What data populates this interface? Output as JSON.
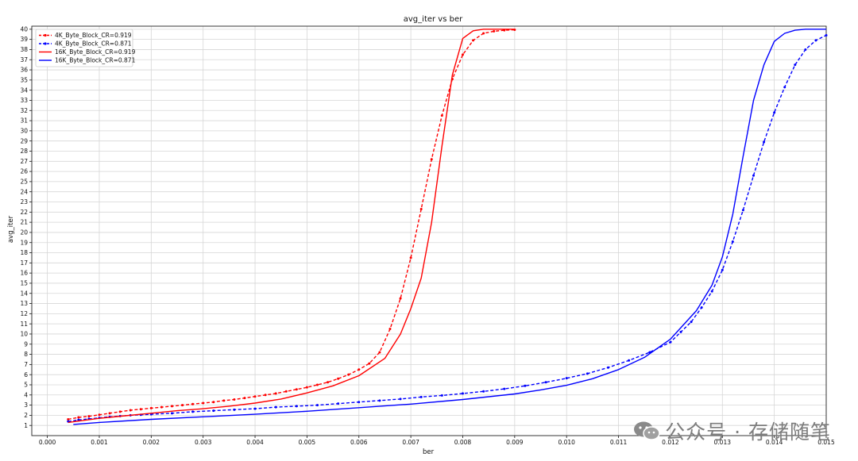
{
  "chart_data": {
    "type": "line",
    "title": "avg_iter vs ber",
    "xlabel": "ber",
    "ylabel": "avg_iter",
    "xlim": [
      -0.0003,
      0.015
    ],
    "ylim": [
      0,
      40.3
    ],
    "xticks": [
      "0.000",
      "0.001",
      "0.002",
      "0.003",
      "0.004",
      "0.005",
      "0.006",
      "0.007",
      "0.008",
      "0.009",
      "0.010",
      "0.011",
      "0.012",
      "0.013",
      "0.014",
      "0.015"
    ],
    "yticks": [
      "1",
      "2",
      "3",
      "4",
      "5",
      "6",
      "7",
      "8",
      "9",
      "10",
      "11",
      "12",
      "13",
      "14",
      "15",
      "16",
      "17",
      "18",
      "19",
      "20",
      "21",
      "22",
      "23",
      "24",
      "25",
      "26",
      "27",
      "28",
      "29",
      "30",
      "31",
      "32",
      "33",
      "34",
      "35",
      "36",
      "37",
      "38",
      "39",
      "40"
    ],
    "grid": true,
    "legend_position": "top-left",
    "series": [
      {
        "name": "4K_Byte_Block_CR=0.919",
        "color": "#ff0000",
        "style": "dashed-marker",
        "x": [
          0.0004,
          0.0006,
          0.0008,
          0.001,
          0.0012,
          0.0014,
          0.0016,
          0.0018,
          0.002,
          0.0022,
          0.0024,
          0.0026,
          0.0028,
          0.003,
          0.0032,
          0.0034,
          0.0036,
          0.0038,
          0.004,
          0.0042,
          0.0044,
          0.0046,
          0.0048,
          0.005,
          0.0052,
          0.0054,
          0.0056,
          0.0058,
          0.006,
          0.0062,
          0.0064,
          0.0066,
          0.0068,
          0.007,
          0.0072,
          0.0074,
          0.0076,
          0.0078,
          0.008,
          0.0082,
          0.0084,
          0.0086,
          0.0088,
          0.009
        ],
        "y": [
          1.6,
          1.8,
          1.9,
          2.05,
          2.2,
          2.35,
          2.5,
          2.6,
          2.7,
          2.8,
          2.9,
          3.0,
          3.1,
          3.2,
          3.3,
          3.45,
          3.55,
          3.7,
          3.85,
          4.0,
          4.15,
          4.35,
          4.55,
          4.75,
          5.0,
          5.25,
          5.6,
          6.0,
          6.5,
          7.1,
          8.2,
          10.5,
          13.5,
          17.5,
          22.3,
          27.2,
          31.5,
          35.1,
          37.5,
          38.9,
          39.6,
          39.8,
          39.9,
          39.95
        ]
      },
      {
        "name": "4K_Byte_Block_CR=0.871",
        "color": "#0000ff",
        "style": "dashed-marker",
        "x": [
          0.0004,
          0.0006,
          0.0008,
          0.001,
          0.0012,
          0.0014,
          0.0016,
          0.0018,
          0.002,
          0.0024,
          0.0028,
          0.0032,
          0.0036,
          0.004,
          0.0044,
          0.0048,
          0.0052,
          0.0056,
          0.006,
          0.0064,
          0.0068,
          0.0072,
          0.0076,
          0.008,
          0.0084,
          0.0088,
          0.0092,
          0.0096,
          0.01,
          0.0104,
          0.0108,
          0.0112,
          0.0116,
          0.012,
          0.0122,
          0.0124,
          0.0126,
          0.0128,
          0.013,
          0.0132,
          0.0134,
          0.0136,
          0.0138,
          0.014,
          0.0142,
          0.0144,
          0.0146,
          0.0148,
          0.015
        ],
        "y": [
          1.4,
          1.55,
          1.65,
          1.75,
          1.85,
          1.92,
          2.0,
          2.05,
          2.1,
          2.2,
          2.35,
          2.45,
          2.55,
          2.65,
          2.8,
          2.9,
          3.0,
          3.15,
          3.3,
          3.45,
          3.6,
          3.8,
          3.95,
          4.15,
          4.35,
          4.6,
          4.9,
          5.25,
          5.65,
          6.1,
          6.7,
          7.4,
          8.2,
          9.2,
          10.2,
          11.2,
          12.6,
          14.2,
          16.3,
          19.1,
          22.2,
          25.6,
          28.9,
          31.8,
          34.3,
          36.5,
          38.0,
          38.9,
          39.4
        ]
      },
      {
        "name": "16K_Byte_Block_CR=0.919",
        "color": "#ff0000",
        "style": "solid",
        "x": [
          0.0004,
          0.001,
          0.0015,
          0.002,
          0.0025,
          0.003,
          0.0035,
          0.004,
          0.0045,
          0.005,
          0.0055,
          0.006,
          0.0065,
          0.0068,
          0.007,
          0.0072,
          0.0074,
          0.0076,
          0.0078,
          0.008,
          0.0082,
          0.0084,
          0.0086,
          0.0088,
          0.009
        ],
        "y": [
          1.3,
          1.7,
          1.95,
          2.2,
          2.45,
          2.65,
          2.9,
          3.2,
          3.6,
          4.2,
          4.9,
          5.9,
          7.6,
          10.0,
          12.5,
          15.5,
          21.0,
          28.5,
          35.5,
          39.1,
          39.85,
          40.0,
          40.0,
          40.0,
          40.0
        ]
      },
      {
        "name": "16K_Byte_Block_CR=0.871",
        "color": "#0000ff",
        "style": "solid",
        "x": [
          0.0005,
          0.001,
          0.002,
          0.003,
          0.004,
          0.005,
          0.006,
          0.007,
          0.008,
          0.009,
          0.0095,
          0.01,
          0.0105,
          0.011,
          0.0115,
          0.012,
          0.0125,
          0.0128,
          0.013,
          0.0132,
          0.0134,
          0.0136,
          0.0138,
          0.014,
          0.0142,
          0.0144,
          0.0146,
          0.0148,
          0.015
        ],
        "y": [
          1.1,
          1.3,
          1.6,
          1.85,
          2.1,
          2.4,
          2.75,
          3.1,
          3.55,
          4.1,
          4.5,
          4.95,
          5.6,
          6.5,
          7.7,
          9.5,
          12.3,
          14.8,
          17.6,
          21.8,
          27.5,
          33.0,
          36.5,
          38.8,
          39.6,
          39.9,
          40.0,
          40.0,
          40.0
        ]
      }
    ]
  },
  "watermark": {
    "icon": "wechat-icon",
    "text": "公众号 · 存储随笔"
  }
}
